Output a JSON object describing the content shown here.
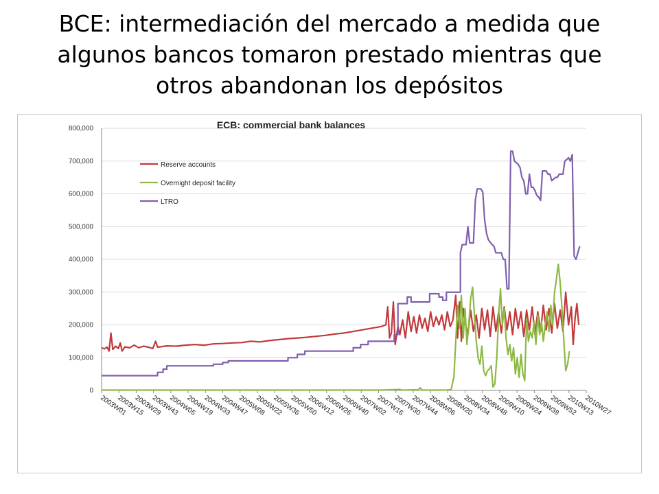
{
  "slide": {
    "title_line1": "BCE: intermediación del mercado a medida que",
    "title_line2": "algunos bancos tomaron prestado mientras que",
    "title_line3": "otros abandonan los depósitos"
  },
  "chart_data": {
    "type": "line",
    "title": "ECB: commercial bank balances",
    "xlabel": "",
    "ylabel": "",
    "ylim": [
      0,
      800000
    ],
    "yticks": [
      "0",
      "100,000",
      "200,000",
      "300,000",
      "400,000",
      "500,000",
      "600,000",
      "700,000",
      "800,000"
    ],
    "x_tick_labels": [
      "2003W01",
      "2003W15",
      "2003W29",
      "2003W43",
      "2004W05",
      "2004W19",
      "2004W33",
      "2004W47",
      "2005W08",
      "2005W22",
      "2005W36",
      "2005W50",
      "2006W12",
      "2006W26",
      "2006W40",
      "2007W02",
      "2007W16",
      "2007W30",
      "2007W44",
      "2008W06",
      "2008W20",
      "2008W34",
      "2008W48",
      "2009W10",
      "2009W24",
      "2009W38",
      "2009W52",
      "2010W13",
      "2010W27"
    ],
    "grid": "horizontal",
    "legend_position": "top-left",
    "x_unit": "weekly index (2003W01 = 0)",
    "series": [
      {
        "name": "Reserve accounts",
        "color": "#c0393b",
        "points": [
          [
            0,
            130000
          ],
          [
            3,
            127000
          ],
          [
            6,
            132000
          ],
          [
            8,
            120000
          ],
          [
            10,
            175000
          ],
          [
            12,
            125000
          ],
          [
            15,
            135000
          ],
          [
            18,
            128000
          ],
          [
            20,
            145000
          ],
          [
            22,
            120000
          ],
          [
            25,
            133000
          ],
          [
            30,
            130000
          ],
          [
            35,
            138000
          ],
          [
            40,
            130000
          ],
          [
            45,
            135000
          ],
          [
            50,
            132000
          ],
          [
            55,
            128000
          ],
          [
            58,
            150000
          ],
          [
            60,
            132000
          ],
          [
            70,
            136000
          ],
          [
            80,
            135000
          ],
          [
            90,
            138000
          ],
          [
            100,
            140000
          ],
          [
            110,
            138000
          ],
          [
            120,
            142000
          ],
          [
            130,
            143000
          ],
          [
            140,
            145000
          ],
          [
            150,
            146000
          ],
          [
            160,
            150000
          ],
          [
            170,
            148000
          ],
          [
            180,
            152000
          ],
          [
            190,
            155000
          ],
          [
            200,
            158000
          ],
          [
            210,
            160000
          ],
          [
            220,
            162000
          ],
          [
            230,
            165000
          ],
          [
            240,
            168000
          ],
          [
            250,
            172000
          ],
          [
            260,
            175000
          ],
          [
            270,
            180000
          ],
          [
            280,
            185000
          ],
          [
            290,
            190000
          ],
          [
            300,
            195000
          ],
          [
            305,
            200000
          ],
          [
            307,
            255000
          ],
          [
            309,
            160000
          ],
          [
            311,
            175000
          ],
          [
            313,
            270000
          ],
          [
            315,
            140000
          ],
          [
            318,
            195000
          ],
          [
            320,
            170000
          ],
          [
            323,
            215000
          ],
          [
            326,
            160000
          ],
          [
            329,
            240000
          ],
          [
            332,
            180000
          ],
          [
            335,
            225000
          ],
          [
            338,
            175000
          ],
          [
            341,
            230000
          ],
          [
            344,
            190000
          ],
          [
            347,
            220000
          ],
          [
            350,
            180000
          ],
          [
            353,
            240000
          ],
          [
            356,
            195000
          ],
          [
            359,
            225000
          ],
          [
            362,
            200000
          ],
          [
            365,
            230000
          ],
          [
            368,
            185000
          ],
          [
            371,
            240000
          ],
          [
            374,
            195000
          ],
          [
            377,
            215000
          ],
          [
            380,
            290000
          ],
          [
            382,
            160000
          ],
          [
            384,
            270000
          ],
          [
            386,
            150000
          ],
          [
            388,
            250000
          ],
          [
            390,
            210000
          ],
          [
            393,
            170000
          ],
          [
            396,
            245000
          ],
          [
            399,
            180000
          ],
          [
            402,
            230000
          ],
          [
            405,
            160000
          ],
          [
            408,
            250000
          ],
          [
            411,
            185000
          ],
          [
            414,
            245000
          ],
          [
            417,
            165000
          ],
          [
            420,
            255000
          ],
          [
            423,
            180000
          ],
          [
            426,
            240000
          ],
          [
            429,
            175000
          ],
          [
            432,
            255000
          ],
          [
            435,
            185000
          ],
          [
            438,
            240000
          ],
          [
            441,
            170000
          ],
          [
            444,
            250000
          ],
          [
            447,
            190000
          ],
          [
            450,
            240000
          ],
          [
            453,
            165000
          ],
          [
            456,
            245000
          ],
          [
            459,
            185000
          ],
          [
            462,
            255000
          ],
          [
            465,
            170000
          ],
          [
            468,
            240000
          ],
          [
            471,
            180000
          ],
          [
            474,
            260000
          ],
          [
            477,
            185000
          ],
          [
            480,
            250000
          ],
          [
            483,
            175000
          ],
          [
            486,
            265000
          ],
          [
            489,
            190000
          ],
          [
            492,
            245000
          ],
          [
            495,
            180000
          ],
          [
            498,
            300000
          ],
          [
            501,
            200000
          ],
          [
            504,
            255000
          ],
          [
            506,
            140000
          ],
          [
            508,
            220000
          ],
          [
            510,
            265000
          ],
          [
            512,
            200000
          ]
        ]
      },
      {
        "name": "Overnight deposit facility",
        "color": "#8db944",
        "points": [
          [
            0,
            1000
          ],
          [
            50,
            1000
          ],
          [
            100,
            1000
          ],
          [
            150,
            1000
          ],
          [
            200,
            1000
          ],
          [
            250,
            1000
          ],
          [
            300,
            1000
          ],
          [
            320,
            3000
          ],
          [
            322,
            1000
          ],
          [
            340,
            2000
          ],
          [
            342,
            8000
          ],
          [
            344,
            1000
          ],
          [
            370,
            1000
          ],
          [
            375,
            2000
          ],
          [
            378,
            40000
          ],
          [
            380,
            150000
          ],
          [
            382,
            260000
          ],
          [
            384,
            190000
          ],
          [
            386,
            290000
          ],
          [
            388,
            160000
          ],
          [
            390,
            250000
          ],
          [
            392,
            140000
          ],
          [
            394,
            200000
          ],
          [
            396,
            280000
          ],
          [
            398,
            315000
          ],
          [
            400,
            230000
          ],
          [
            402,
            150000
          ],
          [
            404,
            100000
          ],
          [
            406,
            80000
          ],
          [
            408,
            135000
          ],
          [
            410,
            60000
          ],
          [
            412,
            45000
          ],
          [
            414,
            60000
          ],
          [
            416,
            65000
          ],
          [
            418,
            75000
          ],
          [
            420,
            10000
          ],
          [
            422,
            20000
          ],
          [
            424,
            100000
          ],
          [
            426,
            230000
          ],
          [
            428,
            310000
          ],
          [
            430,
            200000
          ],
          [
            432,
            250000
          ],
          [
            434,
            160000
          ],
          [
            436,
            110000
          ],
          [
            438,
            140000
          ],
          [
            440,
            90000
          ],
          [
            442,
            130000
          ],
          [
            444,
            50000
          ],
          [
            446,
            100000
          ],
          [
            448,
            40000
          ],
          [
            450,
            110000
          ],
          [
            452,
            50000
          ],
          [
            454,
            30000
          ],
          [
            456,
            220000
          ],
          [
            458,
            150000
          ],
          [
            460,
            180000
          ],
          [
            462,
            160000
          ],
          [
            464,
            210000
          ],
          [
            466,
            140000
          ],
          [
            468,
            230000
          ],
          [
            470,
            170000
          ],
          [
            472,
            210000
          ],
          [
            474,
            150000
          ],
          [
            476,
            200000
          ],
          [
            478,
            240000
          ],
          [
            480,
            180000
          ],
          [
            482,
            260000
          ],
          [
            484,
            200000
          ],
          [
            486,
            300000
          ],
          [
            488,
            340000
          ],
          [
            490,
            385000
          ],
          [
            492,
            330000
          ],
          [
            494,
            250000
          ],
          [
            496,
            150000
          ],
          [
            498,
            60000
          ],
          [
            500,
            80000
          ],
          [
            502,
            120000
          ]
        ]
      },
      {
        "name": "LTRO",
        "color": "#7f5fad",
        "points": [
          [
            0,
            45000
          ],
          [
            60,
            45000
          ],
          [
            60,
            55000
          ],
          [
            66,
            55000
          ],
          [
            66,
            65000
          ],
          [
            70,
            65000
          ],
          [
            70,
            75000
          ],
          [
            120,
            75000
          ],
          [
            120,
            80000
          ],
          [
            130,
            80000
          ],
          [
            130,
            85000
          ],
          [
            136,
            85000
          ],
          [
            136,
            90000
          ],
          [
            200,
            90000
          ],
          [
            200,
            100000
          ],
          [
            210,
            100000
          ],
          [
            210,
            110000
          ],
          [
            218,
            110000
          ],
          [
            218,
            120000
          ],
          [
            270,
            120000
          ],
          [
            270,
            130000
          ],
          [
            278,
            130000
          ],
          [
            278,
            140000
          ],
          [
            286,
            140000
          ],
          [
            286,
            150000
          ],
          [
            314,
            150000
          ],
          [
            314,
            170000
          ],
          [
            318,
            170000
          ],
          [
            318,
            265000
          ],
          [
            328,
            265000
          ],
          [
            328,
            285000
          ],
          [
            332,
            285000
          ],
          [
            332,
            270000
          ],
          [
            352,
            270000
          ],
          [
            352,
            295000
          ],
          [
            362,
            295000
          ],
          [
            362,
            285000
          ],
          [
            366,
            285000
          ],
          [
            366,
            275000
          ],
          [
            370,
            275000
          ],
          [
            370,
            300000
          ],
          [
            385,
            300000
          ],
          [
            385,
            420000
          ],
          [
            387,
            445000
          ],
          [
            391,
            445000
          ],
          [
            393,
            500000
          ],
          [
            395,
            450000
          ],
          [
            399,
            450000
          ],
          [
            401,
            580000
          ],
          [
            403,
            615000
          ],
          [
            407,
            615000
          ],
          [
            409,
            605000
          ],
          [
            411,
            520000
          ],
          [
            413,
            480000
          ],
          [
            415,
            460000
          ],
          [
            419,
            445000
          ],
          [
            421,
            440000
          ],
          [
            423,
            420000
          ],
          [
            429,
            420000
          ],
          [
            431,
            400000
          ],
          [
            433,
            400000
          ],
          [
            435,
            310000
          ],
          [
            437,
            310000
          ],
          [
            439,
            730000
          ],
          [
            441,
            730000
          ],
          [
            443,
            700000
          ],
          [
            447,
            690000
          ],
          [
            449,
            680000
          ],
          [
            451,
            650000
          ],
          [
            453,
            640000
          ],
          [
            455,
            600000
          ],
          [
            457,
            600000
          ],
          [
            459,
            660000
          ],
          [
            461,
            620000
          ],
          [
            463,
            620000
          ],
          [
            465,
            610000
          ],
          [
            467,
            595000
          ],
          [
            469,
            590000
          ],
          [
            471,
            580000
          ],
          [
            473,
            670000
          ],
          [
            477,
            670000
          ],
          [
            479,
            660000
          ],
          [
            481,
            660000
          ],
          [
            483,
            640000
          ],
          [
            487,
            650000
          ],
          [
            489,
            650000
          ],
          [
            491,
            660000
          ],
          [
            495,
            660000
          ],
          [
            497,
            700000
          ],
          [
            501,
            710000
          ],
          [
            503,
            700000
          ],
          [
            505,
            720000
          ],
          [
            507,
            410000
          ],
          [
            509,
            400000
          ],
          [
            511,
            420000
          ],
          [
            513,
            440000
          ]
        ]
      }
    ]
  }
}
